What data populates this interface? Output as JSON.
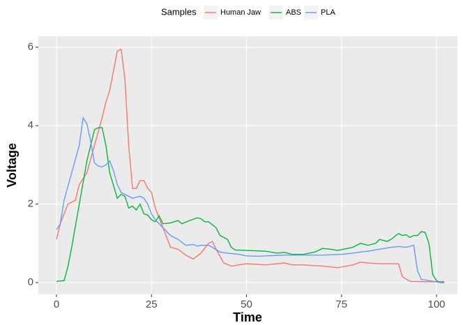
{
  "chart_data": {
    "type": "line",
    "x_label": "Time",
    "y_label": "Voltage",
    "legend_title": "Samples",
    "legend_position": "top",
    "grid": true,
    "xlim": [
      -4.77,
      105.5
    ],
    "ylim": [
      -0.3,
      6.28
    ],
    "xticks": [
      0,
      25,
      50,
      75,
      100
    ],
    "yticks": [
      0,
      2,
      4,
      6
    ],
    "series": [
      {
        "name": "Human Jaw",
        "color": "#f8766d",
        "x": [
          0,
          1,
          3,
          4,
          5,
          6,
          8,
          10,
          12,
          13,
          14,
          16,
          17,
          18,
          19,
          20,
          21,
          22,
          23,
          24,
          25,
          26,
          28,
          30,
          32,
          34,
          36,
          38,
          40,
          41,
          42,
          44,
          46,
          48,
          50,
          55,
          60,
          62,
          65,
          70,
          74,
          78,
          80,
          82,
          85,
          90,
          91,
          93,
          98,
          100,
          102
        ],
        "values": [
          1.1,
          1.5,
          2.0,
          2.05,
          2.1,
          2.5,
          2.8,
          3.5,
          4.2,
          4.6,
          4.9,
          5.9,
          5.95,
          5.2,
          3.5,
          2.4,
          2.4,
          2.6,
          2.6,
          2.4,
          2.3,
          1.9,
          1.4,
          0.9,
          0.85,
          0.7,
          0.6,
          0.75,
          1.0,
          1.05,
          0.85,
          0.5,
          0.42,
          0.45,
          0.48,
          0.45,
          0.5,
          0.45,
          0.45,
          0.42,
          0.38,
          0.45,
          0.52,
          0.5,
          0.48,
          0.48,
          0.15,
          0.03,
          0.02,
          0.02,
          0.03
        ]
      },
      {
        "name": "ABS",
        "color": "#00ba38",
        "x": [
          0,
          2,
          3,
          4,
          6,
          8,
          10,
          11,
          12,
          13,
          14,
          16,
          17,
          18,
          19,
          20,
          21,
          22,
          23,
          24,
          25,
          26,
          27,
          28,
          30,
          32,
          33,
          35,
          37,
          38,
          39,
          40,
          42,
          43,
          45,
          46,
          47,
          50,
          55,
          58,
          60,
          62,
          65,
          68,
          70,
          72,
          74,
          76,
          78,
          80,
          82,
          84,
          85,
          87,
          88,
          90,
          91,
          92,
          93,
          94,
          95,
          96,
          97,
          98,
          99,
          100,
          101,
          102
        ],
        "values": [
          0.03,
          0.05,
          0.4,
          0.9,
          2.0,
          3.1,
          3.9,
          3.95,
          3.95,
          3.5,
          2.8,
          2.15,
          2.25,
          2.2,
          1.9,
          1.95,
          1.85,
          2.0,
          1.75,
          1.72,
          1.6,
          1.55,
          1.7,
          1.5,
          1.52,
          1.58,
          1.5,
          1.58,
          1.65,
          1.63,
          1.55,
          1.55,
          1.4,
          1.2,
          1.1,
          0.9,
          0.83,
          0.82,
          0.8,
          0.75,
          0.77,
          0.72,
          0.72,
          0.78,
          0.87,
          0.85,
          0.82,
          0.86,
          0.9,
          1.0,
          0.95,
          1.0,
          1.1,
          1.05,
          1.1,
          1.25,
          1.2,
          1.22,
          1.15,
          1.2,
          1.2,
          1.3,
          1.28,
          1.0,
          0.2,
          0.05,
          0.0,
          0.0
        ]
      },
      {
        "name": "PLA",
        "color": "#619cff",
        "x": [
          0,
          1,
          2,
          4,
          6,
          7,
          8,
          9,
          10,
          11,
          12,
          13,
          14,
          15,
          16,
          17,
          18,
          20,
          22,
          23,
          24,
          25,
          26,
          28,
          30,
          32,
          34,
          36,
          37,
          38,
          40,
          41,
          43,
          45,
          48,
          50,
          53,
          55,
          60,
          65,
          70,
          75,
          78,
          80,
          82,
          85,
          88,
          90,
          92,
          94,
          95,
          96,
          98,
          100,
          101,
          102
        ],
        "values": [
          1.35,
          1.5,
          2.1,
          2.8,
          3.5,
          4.2,
          4.05,
          3.6,
          3.05,
          2.97,
          2.95,
          3.0,
          3.1,
          2.85,
          2.5,
          2.3,
          2.25,
          2.15,
          2.2,
          2.15,
          2.0,
          1.75,
          1.6,
          1.4,
          1.2,
          1.1,
          0.95,
          0.97,
          0.93,
          0.95,
          0.95,
          0.9,
          0.78,
          0.75,
          0.72,
          0.68,
          0.67,
          0.68,
          0.7,
          0.7,
          0.7,
          0.72,
          0.75,
          0.78,
          0.8,
          0.85,
          0.9,
          0.92,
          0.9,
          0.95,
          0.3,
          0.08,
          0.05,
          0.02,
          0.0,
          0.02
        ]
      }
    ]
  }
}
